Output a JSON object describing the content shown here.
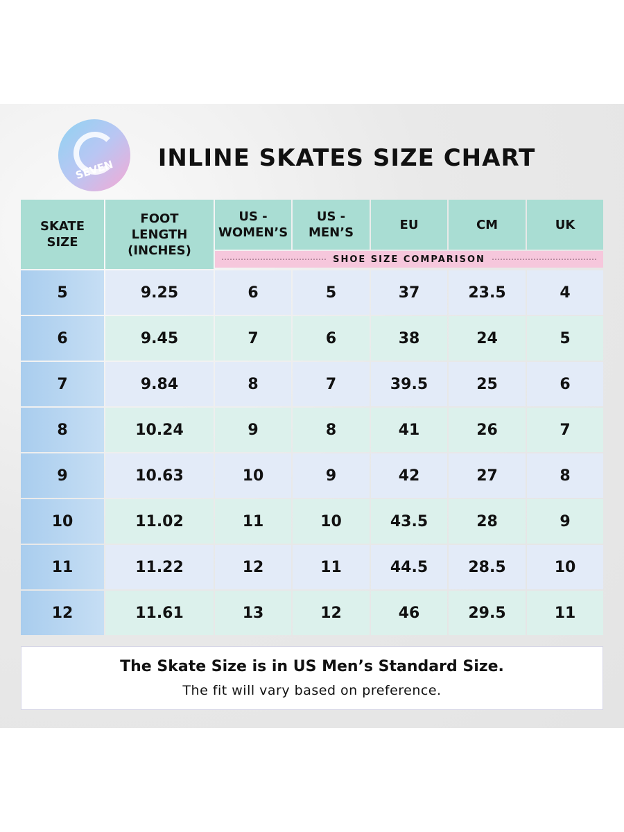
{
  "logo": {
    "text": "SEVEN"
  },
  "header": {
    "title": "INLINE SKATES SIZE CHART"
  },
  "table": {
    "headers": [
      "SKATE SIZE",
      "FOOT LENGTH (INCHES)",
      "US - WOMEN’S",
      "US - MEN’S",
      "EU",
      "CM",
      "UK"
    ],
    "subheader": "SHOE SIZE COMPARISON",
    "rows": [
      [
        "5",
        "9.25",
        "6",
        "5",
        "37",
        "23.5",
        "4"
      ],
      [
        "6",
        "9.45",
        "7",
        "6",
        "38",
        "24",
        "5"
      ],
      [
        "7",
        "9.84",
        "8",
        "7",
        "39.5",
        "25",
        "6"
      ],
      [
        "8",
        "10.24",
        "9",
        "8",
        "41",
        "26",
        "7"
      ],
      [
        "9",
        "10.63",
        "10",
        "9",
        "42",
        "27",
        "8"
      ],
      [
        "10",
        "11.02",
        "11",
        "10",
        "43.5",
        "28",
        "9"
      ],
      [
        "11",
        "11.22",
        "12",
        "11",
        "44.5",
        "28.5",
        "10"
      ],
      [
        "12",
        "11.61",
        "13",
        "12",
        "46",
        "29.5",
        "11"
      ]
    ]
  },
  "note": {
    "bold": "The Skate Size is in US Men’s Standard Size.",
    "text": "The fit will vary based on preference."
  }
}
